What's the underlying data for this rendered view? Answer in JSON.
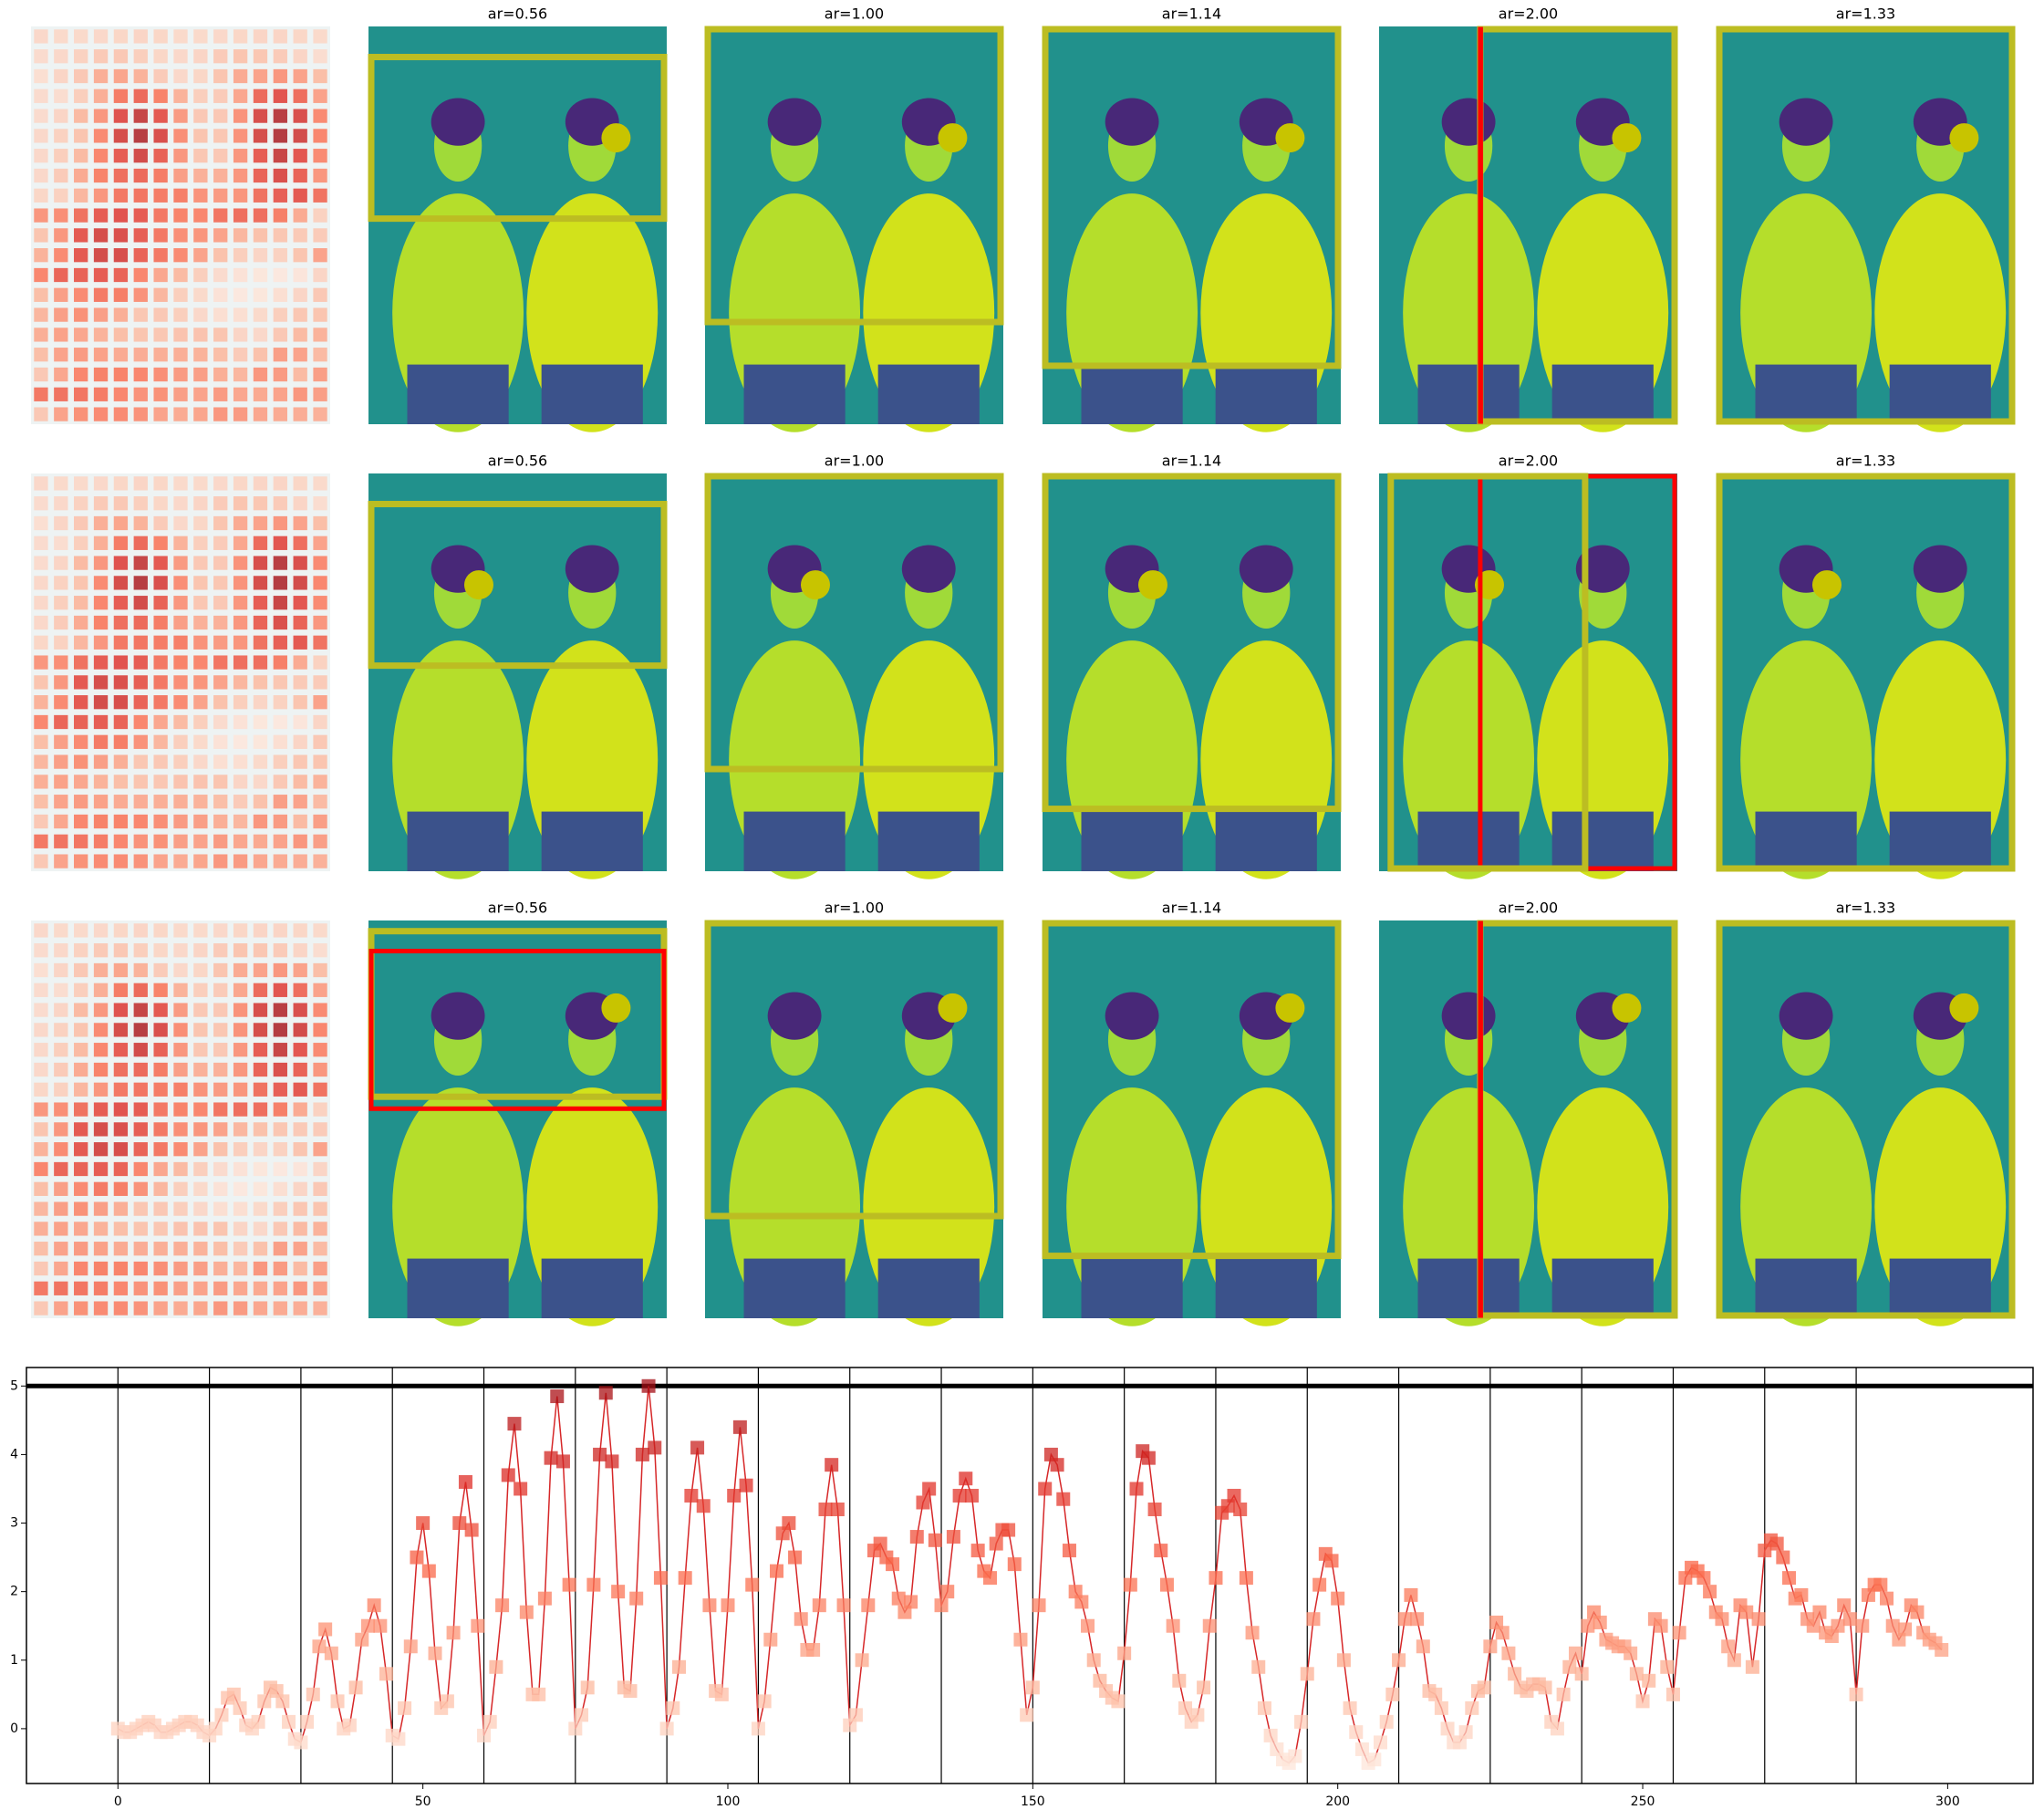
{
  "panel_titles": [
    [
      "ar=0.56",
      "ar=1.00",
      "ar=1.14",
      "ar=2.00",
      "ar=1.33"
    ],
    [
      "ar=0.56",
      "ar=1.00",
      "ar=1.14",
      "ar=2.00",
      "ar=1.33"
    ],
    [
      "ar=0.56",
      "ar=1.00",
      "ar=1.14",
      "ar=2.00",
      "ar=1.33"
    ]
  ],
  "chart_data": {
    "type": "line",
    "x": [
      0,
      1,
      2,
      3,
      4,
      5,
      6,
      7,
      8,
      9,
      10,
      11,
      12,
      13,
      14,
      15,
      16,
      17,
      18,
      19,
      20,
      21,
      22,
      23,
      24,
      25,
      26,
      27,
      28,
      29,
      30,
      31,
      32,
      33,
      34,
      35,
      36,
      37,
      38,
      39,
      40,
      41,
      42,
      43,
      44,
      45,
      46,
      47,
      48,
      49,
      50,
      51,
      52,
      53,
      54,
      55,
      56,
      57,
      58,
      59,
      60,
      61,
      62,
      63,
      64,
      65,
      66,
      67,
      68,
      69,
      70,
      71,
      72,
      73,
      74,
      75,
      76,
      77,
      78,
      79,
      80,
      81,
      82,
      83,
      84,
      85,
      86,
      87,
      88,
      89,
      90,
      91,
      92,
      93,
      94,
      95,
      96,
      97,
      98,
      99,
      100,
      101,
      102,
      103,
      104,
      105,
      106,
      107,
      108,
      109,
      110,
      111,
      112,
      113,
      114,
      115,
      116,
      117,
      118,
      119,
      120,
      121,
      122,
      123,
      124,
      125,
      126,
      127,
      128,
      129,
      130,
      131,
      132,
      133,
      134,
      135,
      136,
      137,
      138,
      139,
      140,
      141,
      142,
      143,
      144,
      145,
      146,
      147,
      148,
      149,
      150,
      151,
      152,
      153,
      154,
      155,
      156,
      157,
      158,
      159,
      160,
      161,
      162,
      163,
      164,
      165,
      166,
      167,
      168,
      169,
      170,
      171,
      172,
      173,
      174,
      175,
      176,
      177,
      178,
      179,
      180,
      181,
      182,
      183,
      184,
      185,
      186,
      187,
      188,
      189,
      190,
      191,
      192,
      193,
      194,
      195,
      196,
      197,
      198,
      199,
      200,
      201,
      202,
      203,
      204,
      205,
      206,
      207,
      208,
      209,
      210,
      211,
      212,
      213,
      214,
      215,
      216,
      217,
      218,
      219,
      220,
      221,
      222,
      223,
      224,
      225,
      226,
      227,
      228,
      229,
      230,
      231,
      232,
      233,
      234,
      235,
      236,
      237,
      238,
      239,
      240,
      241,
      242,
      243,
      244,
      245,
      246,
      247,
      248,
      249,
      250,
      251,
      252,
      253,
      254,
      255,
      256,
      257,
      258,
      259,
      260,
      261,
      262,
      263,
      264,
      265,
      266,
      267,
      268,
      269,
      270,
      271,
      272,
      273,
      274,
      275,
      276,
      277,
      278,
      279,
      280,
      281,
      282,
      283,
      284,
      285,
      286,
      287,
      288,
      289,
      290,
      291,
      292,
      293,
      294,
      295,
      296,
      297,
      298,
      299
    ],
    "series": [
      {
        "color": "#d62728",
        "values": [
          0,
          -0.05,
          -0.05,
          0,
          0.05,
          0.1,
          0.05,
          -0.05,
          -0.05,
          0,
          0.05,
          0.1,
          0.1,
          0.05,
          -0.05,
          -0.1,
          0,
          0.2,
          0.45,
          0.5,
          0.3,
          0.05,
          0,
          0.1,
          0.4,
          0.6,
          0.55,
          0.4,
          0.1,
          -0.15,
          -0.2,
          0.1,
          0.5,
          1.2,
          1.45,
          1.1,
          0.4,
          0,
          0.05,
          0.6,
          1.3,
          1.5,
          1.8,
          1.5,
          0.8,
          -0.1,
          -0.15,
          0.3,
          1.2,
          2.5,
          3.0,
          2.3,
          1.1,
          0.3,
          0.4,
          1.4,
          3.0,
          3.6,
          2.9,
          1.5,
          -0.1,
          0.1,
          0.9,
          1.8,
          3.7,
          4.45,
          3.5,
          1.7,
          0.5,
          0.5,
          1.9,
          3.95,
          4.85,
          3.9,
          2.1,
          0,
          0.2,
          0.6,
          2.1,
          4.0,
          4.9,
          3.9,
          2.0,
          0.6,
          0.55,
          1.9,
          4.0,
          5.0,
          4.1,
          2.2,
          0,
          0.3,
          0.9,
          2.2,
          3.4,
          4.1,
          3.25,
          1.8,
          0.55,
          0.5,
          1.8,
          3.4,
          4.4,
          3.55,
          2.1,
          0,
          0.4,
          1.3,
          2.3,
          2.85,
          3.0,
          2.5,
          1.6,
          1.15,
          1.15,
          1.8,
          3.2,
          3.85,
          3.2,
          1.8,
          0.05,
          0.2,
          1.0,
          1.8,
          2.6,
          2.7,
          2.5,
          2.4,
          1.9,
          1.7,
          1.85,
          2.8,
          3.3,
          3.5,
          2.75,
          1.8,
          2.0,
          2.8,
          3.4,
          3.65,
          3.4,
          2.6,
          2.3,
          2.2,
          2.7,
          2.9,
          2.9,
          2.4,
          1.3,
          0.2,
          0.6,
          1.8,
          3.5,
          4.0,
          3.85,
          3.35,
          2.6,
          2.0,
          1.85,
          1.5,
          1.0,
          0.7,
          0.55,
          0.45,
          0.4,
          1.1,
          2.1,
          3.5,
          4.05,
          3.95,
          3.2,
          2.6,
          2.1,
          1.5,
          0.7,
          0.3,
          0.1,
          0.2,
          0.6,
          1.5,
          2.2,
          3.15,
          3.25,
          3.4,
          3.2,
          2.2,
          1.4,
          0.9,
          0.3,
          -0.1,
          -0.3,
          -0.45,
          -0.5,
          -0.4,
          0.1,
          0.8,
          1.6,
          2.1,
          2.55,
          2.45,
          1.9,
          1.0,
          0.3,
          -0.05,
          -0.3,
          -0.5,
          -0.45,
          -0.2,
          0.1,
          0.5,
          1.0,
          1.6,
          1.95,
          1.6,
          1.2,
          0.55,
          0.5,
          0.3,
          0.0,
          -0.2,
          -0.2,
          -0.05,
          0.3,
          0.55,
          0.6,
          1.2,
          1.55,
          1.4,
          1.1,
          0.8,
          0.6,
          0.55,
          0.65,
          0.65,
          0.6,
          0.1,
          0.0,
          0.5,
          0.9,
          1.1,
          0.8,
          1.5,
          1.7,
          1.55,
          1.3,
          1.25,
          1.2,
          1.2,
          1.1,
          0.8,
          0.4,
          0.7,
          1.6,
          1.5,
          0.9,
          0.5,
          1.4,
          2.2,
          2.35,
          2.3,
          2.2,
          2.0,
          1.7,
          1.6,
          1.2,
          1.0,
          1.8,
          1.7,
          0.9,
          1.6,
          2.6,
          2.75,
          2.7,
          2.5,
          2.2,
          1.9,
          1.95,
          1.6,
          1.5,
          1.7,
          1.4,
          1.35,
          1.5,
          1.8,
          1.6,
          0.5,
          1.5,
          1.95,
          2.1,
          2.1,
          1.9,
          1.5,
          1.3,
          1.45,
          1.8,
          1.7,
          1.4,
          1.3,
          1.25,
          1.15
        ]
      }
    ],
    "marker_colormap": [
      "#fee5d9",
      "#fcae91",
      "#fb6a4a",
      "#de2d26",
      "#a50f15"
    ],
    "xlim": [
      -15,
      314
    ],
    "ylim": [
      -0.8,
      5.27
    ],
    "xticks": [
      0,
      50,
      100,
      150,
      200,
      250,
      300
    ],
    "yticks": [
      0,
      1,
      2,
      3,
      4,
      5
    ],
    "vlines": [
      0,
      15,
      30,
      45,
      60,
      75,
      90,
      105,
      120,
      135,
      150,
      165,
      180,
      195,
      210,
      225,
      240,
      255,
      270,
      285
    ],
    "hline": 5
  }
}
